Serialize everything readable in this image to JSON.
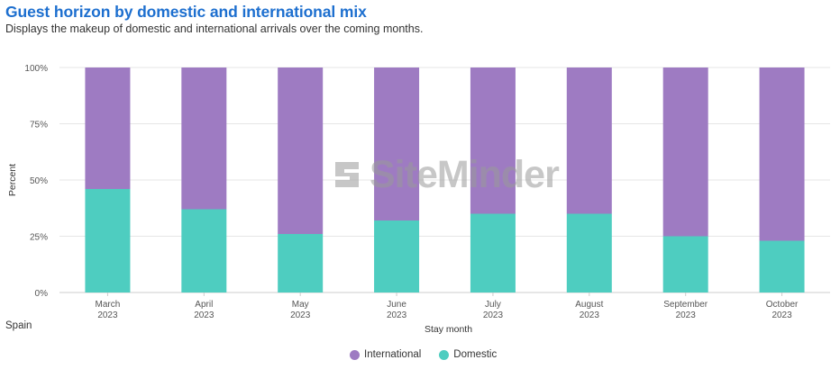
{
  "header": {
    "title": "Guest horizon by domestic and international mix",
    "subtitle": "Displays the makeup of domestic and international arrivals over the coming months."
  },
  "watermark": "SiteMinder",
  "region": "Spain",
  "colors": {
    "international": "#9e7bc2",
    "domestic": "#4ecdc0",
    "gridline": "#e6e6e6",
    "axis": "#cccccc",
    "title": "#1d6fcf"
  },
  "chart_data": {
    "type": "bar",
    "stacked": true,
    "title": "",
    "xlabel": "Stay month",
    "ylabel": "Percent",
    "ylim": [
      0,
      100
    ],
    "yticks": [
      "0%",
      "25%",
      "50%",
      "75%",
      "100%"
    ],
    "categories": [
      [
        "March",
        "2023"
      ],
      [
        "April",
        "2023"
      ],
      [
        "May",
        "2023"
      ],
      [
        "June",
        "2023"
      ],
      [
        "July",
        "2023"
      ],
      [
        "August",
        "2023"
      ],
      [
        "September",
        "2023"
      ],
      [
        "October",
        "2023"
      ]
    ],
    "series": [
      {
        "name": "Domestic",
        "values": [
          46,
          37,
          26,
          32,
          35,
          35,
          25,
          23
        ]
      },
      {
        "name": "International",
        "values": [
          54,
          63,
          74,
          68,
          65,
          65,
          75,
          77
        ]
      }
    ],
    "legend": [
      "International",
      "Domestic"
    ],
    "legend_position": "bottom"
  }
}
